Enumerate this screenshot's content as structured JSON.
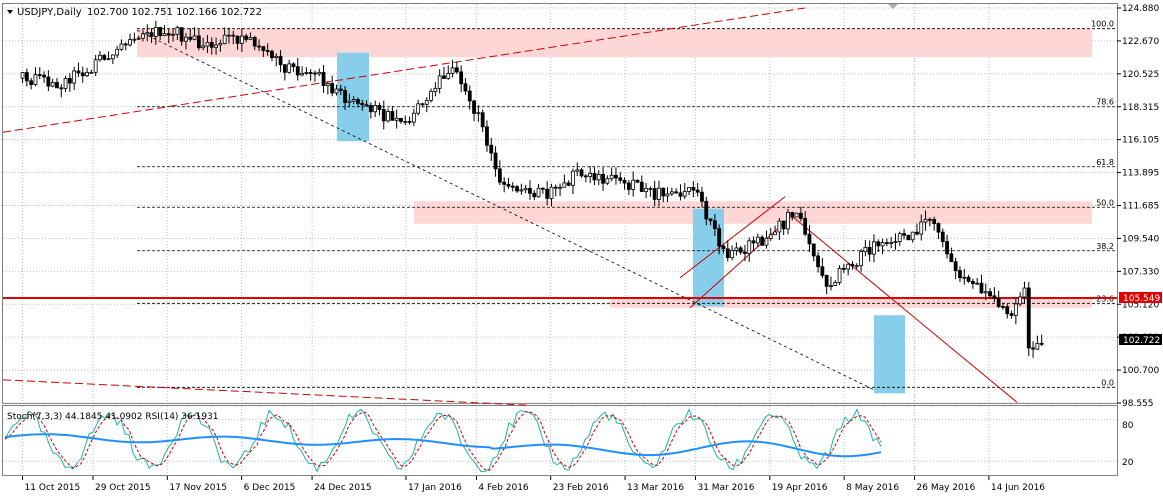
{
  "header": {
    "symbol": "USDJPY,Daily",
    "ohlc": "102.700 102.751 102.166 102.722"
  },
  "price_axis": {
    "ticks": [
      "124.880",
      "122.670",
      "120.525",
      "118.315",
      "116.105",
      "113.895",
      "111.685",
      "109.540",
      "107.330",
      "105.120",
      "102.910",
      "100.700",
      "98.555"
    ],
    "current_price": "102.722",
    "level_price": "105.549"
  },
  "date_axis": {
    "ticks": [
      "11 Oct 2015",
      "29 Oct 2015",
      "17 Nov 2015",
      "6 Dec 2015",
      "24 Dec 2015",
      "17 Jan 2016",
      "4 Feb 2016",
      "23 Feb 2016",
      "13 Mar 2016",
      "31 Mar 2016",
      "19 Apr 2016",
      "8 May 2016",
      "26 May 2016",
      "14 Jun 2016"
    ]
  },
  "indicator": {
    "label": "Stoch(7,3,3) 44.1845 41.0902  RSI(14) 36.1931",
    "ticks": [
      "80",
      "20"
    ]
  },
  "colors": {
    "background": "#ffffff",
    "grid": "#c0c0c0",
    "candle": "#000000",
    "zone_fill": "#ffd6d6",
    "highlight_fill": "#87ceeb",
    "support_line": "#e00000",
    "trend_line": "#cc0000",
    "stoch_main": "#20b2aa",
    "stoch_signal": "#cc0000",
    "rsi_line": "#1e90ff"
  },
  "chart_data": {
    "type": "candlestick",
    "fib_levels": [
      {
        "label": "100.0",
        "price": 123.5
      },
      {
        "label": "78.6",
        "price": 118.3
      },
      {
        "label": "61.8",
        "price": 114.3
      },
      {
        "label": "50.0",
        "price": 111.6
      },
      {
        "label": "38.2",
        "price": 108.7
      },
      {
        "label": "23.6",
        "price": 105.2
      },
      {
        "label": "0.0",
        "price": 99.6
      }
    ],
    "horizontal_level": 105.549,
    "current_price": 102.722,
    "close_path": [
      {
        "date": "2015-10-11",
        "close": 120.2
      },
      {
        "date": "2015-10-20",
        "close": 119.7
      },
      {
        "date": "2015-10-29",
        "close": 121.0
      },
      {
        "date": "2015-11-08",
        "close": 123.2
      },
      {
        "date": "2015-11-17",
        "close": 123.4
      },
      {
        "date": "2015-11-26",
        "close": 122.6
      },
      {
        "date": "2015-12-06",
        "close": 123.0
      },
      {
        "date": "2015-12-15",
        "close": 121.2
      },
      {
        "date": "2015-12-24",
        "close": 120.5
      },
      {
        "date": "2016-01-04",
        "close": 118.5
      },
      {
        "date": "2016-01-17",
        "close": 117.2
      },
      {
        "date": "2016-01-29",
        "close": 121.1
      },
      {
        "date": "2016-02-04",
        "close": 117.9
      },
      {
        "date": "2016-02-11",
        "close": 112.7
      },
      {
        "date": "2016-02-23",
        "close": 112.5
      },
      {
        "date": "2016-03-01",
        "close": 114.0
      },
      {
        "date": "2016-03-13",
        "close": 113.3
      },
      {
        "date": "2016-03-22",
        "close": 112.4
      },
      {
        "date": "2016-03-31",
        "close": 112.6
      },
      {
        "date": "2016-04-08",
        "close": 108.1
      },
      {
        "date": "2016-04-19",
        "close": 109.7
      },
      {
        "date": "2016-04-26",
        "close": 111.4
      },
      {
        "date": "2016-05-03",
        "close": 106.3
      },
      {
        "date": "2016-05-08",
        "close": 107.4
      },
      {
        "date": "2016-05-17",
        "close": 109.2
      },
      {
        "date": "2016-05-26",
        "close": 110.0
      },
      {
        "date": "2016-05-31",
        "close": 110.9
      },
      {
        "date": "2016-06-06",
        "close": 106.8
      },
      {
        "date": "2016-06-14",
        "close": 105.9
      },
      {
        "date": "2016-06-20",
        "close": 104.3
      },
      {
        "date": "2016-06-23",
        "close": 106.2
      },
      {
        "date": "2016-06-24",
        "close": 102.4
      },
      {
        "date": "2016-06-28",
        "close": 102.7
      }
    ]
  }
}
